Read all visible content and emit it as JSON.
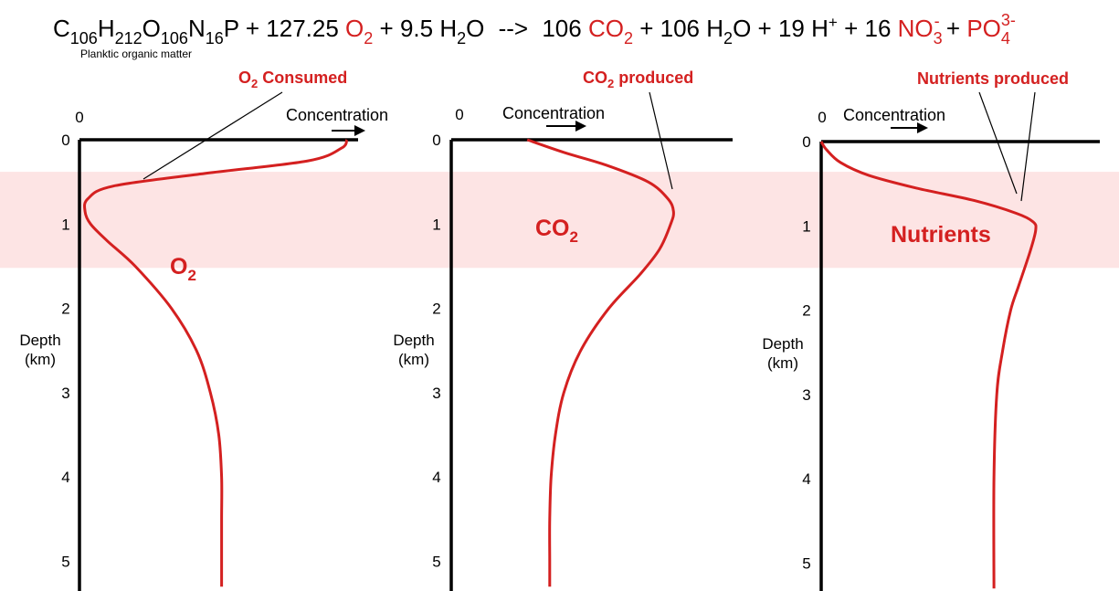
{
  "equation": {
    "reactant_organic": {
      "C": "C",
      "C_sub": "106",
      "H": "H",
      "H_sub": "212",
      "O": "O",
      "O_sub": "106",
      "N": "N",
      "N_sub": "16",
      "P": "P"
    },
    "plus_1": "+",
    "o2_coeff": "127.25",
    "o2": {
      "base": "O",
      "sub": "2"
    },
    "plus_2": "+",
    "water_coeff": "9.5",
    "water": {
      "H": "H",
      "sub": "2",
      "O": "O"
    },
    "arrow": "-->",
    "co2_coeff": "106",
    "co2": {
      "base": "CO",
      "sub": "2"
    },
    "plus_3": "+",
    "water2_coeff": "106",
    "water2": {
      "H": "H",
      "sub": "2",
      "O": "O"
    },
    "plus_4": "+",
    "hplus_coeff": "19",
    "hplus": {
      "base": "H",
      "sup": "+"
    },
    "plus_5": "+",
    "no3_coeff": "16",
    "no3": {
      "base": "NO",
      "sub": "3",
      "sup": "-"
    },
    "plus_6": "+",
    "po4": {
      "base": "PO",
      "sub": "4",
      "sup": "3-"
    },
    "note": "Planktic organic matter"
  },
  "callouts": {
    "o2_consumed": {
      "base": "O",
      "sub": "2",
      "rest": " Consumed"
    },
    "co2_produced": {
      "base": "CO",
      "sub": "2",
      "rest": " produced"
    },
    "nutrients_produced": "Nutrients produced"
  },
  "colors": {
    "curve": "#d42020",
    "band": "#fde4e4",
    "axis": "#000000"
  },
  "band_depth_km": [
    0.38,
    1.52
  ],
  "panels": [
    {
      "name": "o2",
      "x_origin_label": "0",
      "x_title": "Concentration",
      "y_title_1": "Depth",
      "y_title_2": "(km)",
      "y_ticks": [
        "0",
        "1",
        "2",
        "3",
        "4",
        "5"
      ],
      "curve_label": {
        "base": "O",
        "sub": "2"
      },
      "profile": [
        [
          0.0,
          0.96
        ],
        [
          0.1,
          0.94
        ],
        [
          0.25,
          0.82
        ],
        [
          0.4,
          0.45
        ],
        [
          0.55,
          0.12
        ],
        [
          0.7,
          0.03
        ],
        [
          0.85,
          0.02
        ],
        [
          1.0,
          0.04
        ],
        [
          1.2,
          0.1
        ],
        [
          1.5,
          0.2
        ],
        [
          2.0,
          0.33
        ],
        [
          2.5,
          0.42
        ],
        [
          3.0,
          0.47
        ],
        [
          3.5,
          0.5
        ],
        [
          4.0,
          0.51
        ],
        [
          4.5,
          0.51
        ],
        [
          5.0,
          0.51
        ],
        [
          5.3,
          0.51
        ]
      ]
    },
    {
      "name": "co2",
      "x_origin_label": "0",
      "x_title": "Concentration",
      "y_title_1": "Depth",
      "y_title_2": "(km)",
      "y_ticks": [
        "0",
        "1",
        "2",
        "3",
        "4",
        "5"
      ],
      "curve_label": {
        "base": "CO",
        "sub": "2"
      },
      "profile": [
        [
          0.0,
          0.27
        ],
        [
          0.15,
          0.4
        ],
        [
          0.3,
          0.55
        ],
        [
          0.5,
          0.7
        ],
        [
          0.7,
          0.77
        ],
        [
          0.85,
          0.79
        ],
        [
          1.0,
          0.78
        ],
        [
          1.3,
          0.74
        ],
        [
          1.6,
          0.67
        ],
        [
          2.0,
          0.56
        ],
        [
          2.5,
          0.46
        ],
        [
          3.0,
          0.4
        ],
        [
          3.5,
          0.37
        ],
        [
          4.0,
          0.355
        ],
        [
          4.5,
          0.35
        ],
        [
          5.0,
          0.35
        ],
        [
          5.3,
          0.35
        ]
      ]
    },
    {
      "name": "nutrients",
      "x_origin_label": "0",
      "x_title": "Concentration",
      "y_title_1": "Depth",
      "y_title_2": "(km)",
      "y_ticks": [
        "0",
        "1",
        "2",
        "3",
        "4",
        "5"
      ],
      "curve_label": "Nutrients",
      "profile": [
        [
          0.0,
          0.0
        ],
        [
          0.1,
          0.02
        ],
        [
          0.25,
          0.07
        ],
        [
          0.4,
          0.17
        ],
        [
          0.55,
          0.34
        ],
        [
          0.7,
          0.55
        ],
        [
          0.85,
          0.7
        ],
        [
          0.95,
          0.76
        ],
        [
          1.05,
          0.77
        ],
        [
          1.3,
          0.75
        ],
        [
          1.7,
          0.71
        ],
        [
          2.0,
          0.68
        ],
        [
          2.5,
          0.65
        ],
        [
          3.0,
          0.63
        ],
        [
          4.0,
          0.62
        ],
        [
          5.3,
          0.62
        ]
      ]
    }
  ]
}
